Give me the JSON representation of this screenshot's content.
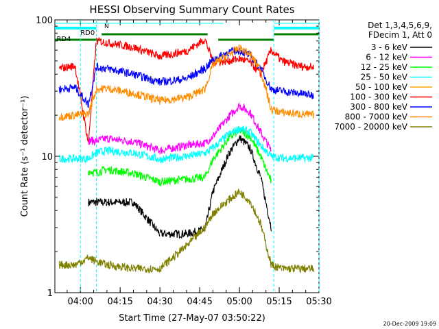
{
  "chart_data": {
    "type": "line",
    "title": "HESSI Observing Summary Count Rates",
    "xlabel": "Start Time (27-May-07 03:50:22)",
    "ylabel": "Count Rate (s⁻¹ detector⁻¹)",
    "yscale": "log",
    "ylim": [
      1,
      100
    ],
    "xlim": [
      "03:50:22",
      "05:30:00"
    ],
    "xticks": [
      "04:00",
      "04:15",
      "04:30",
      "04:45",
      "05:00",
      "05:15",
      "05:30"
    ],
    "yticks": [
      "1",
      "10",
      "100"
    ],
    "grid": false,
    "legend_placement": "right",
    "legend_header": [
      "Det 1,3,4,5,6,9,",
      "FDecim 1, Att 0"
    ],
    "flags": [
      {
        "name": "N",
        "color": "#00ffff"
      },
      {
        "name": "RD0",
        "color": "#00ffff"
      },
      {
        "name": "RD4",
        "color": "#008000"
      }
    ],
    "x": [
      "03:52",
      "03:58",
      "04:03",
      "04:06",
      "04:10",
      "04:20",
      "04:30",
      "04:40",
      "04:47",
      "04:50",
      "04:56",
      "05:00",
      "05:04",
      "05:08",
      "05:12",
      "05:16",
      "05:22",
      "05:28"
    ],
    "series": [
      {
        "name": "3 - 6 keV",
        "color": "#000000",
        "values": [
          null,
          null,
          4.6,
          4.6,
          4.6,
          4.6,
          2.7,
          2.7,
          2.9,
          5.5,
          10.5,
          13.7,
          11.5,
          7.0,
          3.0,
          null,
          null,
          null
        ]
      },
      {
        "name": "6 - 12 keV",
        "color": "#ff00ff",
        "values": [
          null,
          null,
          13.0,
          13.0,
          13.5,
          12.8,
          11.0,
          12.0,
          12.5,
          14.0,
          19.5,
          23.5,
          21.0,
          15.0,
          11.0,
          null,
          null,
          null
        ]
      },
      {
        "name": "12 - 25 keV",
        "color": "#00ff00",
        "values": [
          null,
          null,
          7.8,
          7.6,
          8.0,
          7.5,
          6.5,
          6.8,
          7.0,
          9.5,
          13.5,
          15.5,
          14.0,
          10.0,
          6.5,
          null,
          null,
          null
        ]
      },
      {
        "name": "25 - 50 keV",
        "color": "#00ffff",
        "values": [
          9.6,
          9.6,
          9.6,
          10.6,
          11.0,
          10.6,
          9.5,
          10.0,
          10.5,
          11.5,
          14.5,
          16.0,
          15.0,
          12.0,
          10.0,
          9.7,
          9.7,
          9.7
        ]
      },
      {
        "name": "50 - 100 keV",
        "color": "#ffa500",
        "values": [
          null,
          null,
          null,
          null,
          null,
          null,
          null,
          null,
          null,
          null,
          null,
          null,
          null,
          null,
          null,
          null,
          null,
          null
        ]
      },
      {
        "name": "100 - 300 keV",
        "color": "#ff0000",
        "values": [
          44.0,
          46.0,
          12.5,
          70.0,
          68.0,
          63.0,
          54.0,
          59.0,
          72.0,
          49.0,
          50.0,
          52.0,
          49.0,
          40.0,
          60.0,
          50.0,
          46.0,
          45.0
        ]
      },
      {
        "name": "300 - 800 keV",
        "color": "#0000ff",
        "values": [
          31.0,
          32.0,
          24.0,
          45.0,
          44.0,
          40.0,
          35.0,
          37.0,
          44.0,
          51.0,
          58.0,
          60.0,
          55.0,
          44.0,
          31.0,
          30.0,
          29.0,
          28.0
        ]
      },
      {
        "name": "800 - 7000 keV",
        "color": "#ff8c00",
        "values": [
          19.5,
          20.0,
          20.5,
          31.0,
          31.5,
          29.0,
          25.5,
          27.0,
          31.0,
          47.0,
          56.0,
          62.0,
          56.0,
          43.0,
          22.0,
          21.0,
          20.5,
          20.0
        ]
      },
      {
        "name": "7000 - 20000 keV",
        "color": "#808000",
        "values": [
          1.6,
          1.6,
          1.8,
          1.7,
          1.6,
          1.5,
          1.5,
          2.2,
          3.0,
          3.8,
          4.8,
          5.5,
          4.7,
          3.2,
          1.6,
          1.5,
          1.5,
          1.5
        ]
      }
    ]
  },
  "footer_timestamp": "20-Dec-2009 19:09"
}
